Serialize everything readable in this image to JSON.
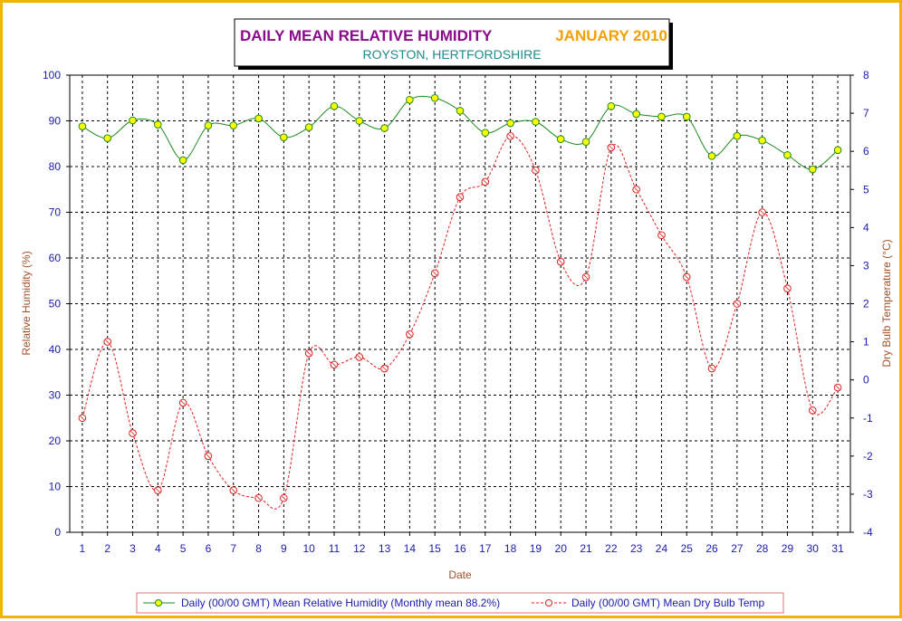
{
  "title": {
    "main": "DAILY MEAN RELATIVE HUMIDITY",
    "month": "JANUARY 2010",
    "subtitle": "ROYSTON, HERTFORDSHIRE"
  },
  "colors": {
    "frame": "#F2B400",
    "humidity_line": "#1E8A1E",
    "humidity_marker": "#FFFF00",
    "temp_line": "#E02020",
    "axis_text": "#1A1AB0",
    "axis_title": "#A0522D"
  },
  "chart_data": {
    "type": "line",
    "xlabel": "Date",
    "ylabel": "Relative Humidity (%)",
    "y2label": "Dry Bulb Temperature (°C)",
    "xlim": [
      1,
      31
    ],
    "ylim": [
      0,
      100
    ],
    "y2lim": [
      -4,
      8
    ],
    "yticks": [
      0,
      10,
      20,
      30,
      40,
      50,
      60,
      70,
      80,
      90,
      100
    ],
    "y2ticks": [
      -4,
      -3,
      -2,
      -1,
      0,
      1,
      2,
      3,
      4,
      5,
      6,
      7,
      8
    ],
    "x": [
      1,
      2,
      3,
      4,
      5,
      6,
      7,
      8,
      9,
      10,
      11,
      12,
      13,
      14,
      15,
      16,
      17,
      18,
      19,
      20,
      21,
      22,
      23,
      24,
      25,
      26,
      27,
      28,
      29,
      30,
      31
    ],
    "grid": true,
    "legend_position": "bottom",
    "series": [
      {
        "name": "Daily (00/00 GMT) Mean Relative Humidity (Monthly mean 88.2%)",
        "axis": "left",
        "values": [
          88.8,
          86.2,
          90.1,
          89.2,
          81.4,
          89.0,
          89.0,
          90.5,
          86.4,
          88.6,
          93.2,
          90.0,
          88.4,
          94.6,
          95.0,
          92.2,
          87.4,
          89.5,
          89.8,
          86.0,
          85.4,
          93.2,
          91.5,
          90.9,
          90.9,
          82.3,
          86.7,
          85.7,
          82.5,
          79.4,
          83.6
        ]
      },
      {
        "name": "Daily (00/00 GMT) Mean Dry Bulb Temp",
        "axis": "right",
        "values": [
          -1.0,
          1.0,
          -1.4,
          -2.9,
          -0.6,
          -2.0,
          -2.9,
          -3.1,
          -3.1,
          0.7,
          0.4,
          0.6,
          0.3,
          1.2,
          2.8,
          4.8,
          5.2,
          6.4,
          5.5,
          3.1,
          2.7,
          6.1,
          5.0,
          3.8,
          2.7,
          0.3,
          2.0,
          4.4,
          2.4,
          -0.8,
          -0.2
        ]
      }
    ]
  }
}
